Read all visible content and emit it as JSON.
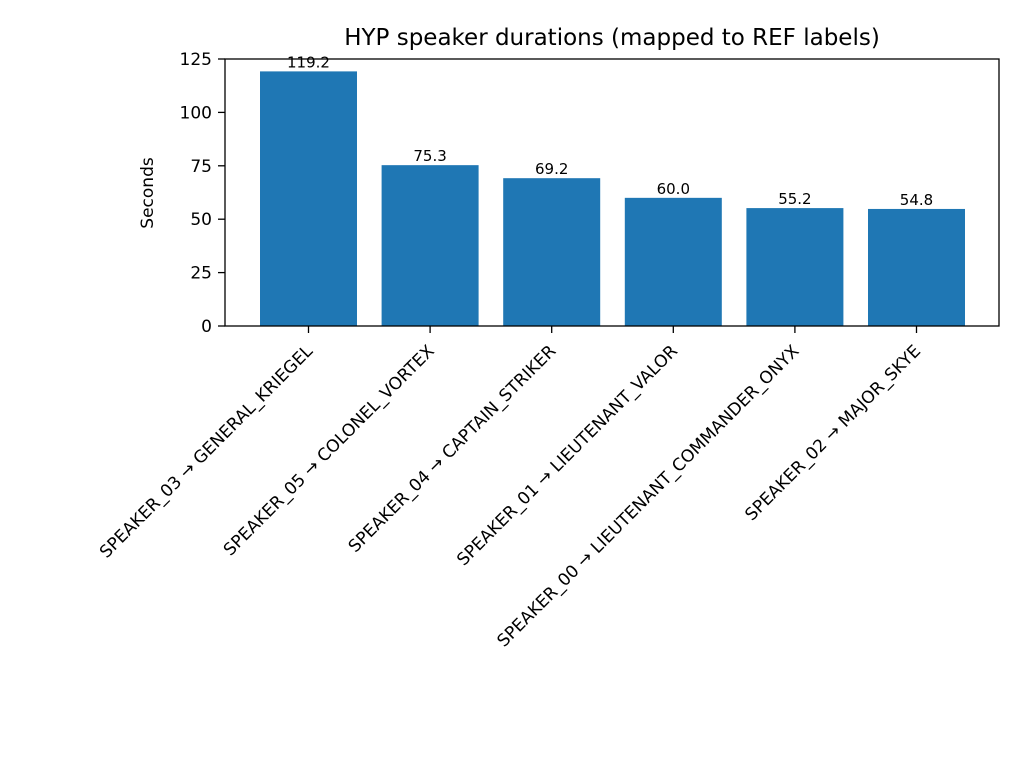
{
  "chart_data": {
    "type": "bar",
    "title": "HYP speaker durations (mapped to REF labels)",
    "xlabel": "",
    "ylabel": "Seconds",
    "categories": [
      "SPEAKER_03 → GENERAL_KRIEGEL",
      "SPEAKER_05 → COLONEL_VORTEX",
      "SPEAKER_04 → CAPTAIN_STRIKER",
      "SPEAKER_01 → LIEUTENANT_VALOR",
      "SPEAKER_00 → LIEUTENANT_COMMANDER_ONYX",
      "SPEAKER_02 → MAJOR_SKYE"
    ],
    "values": [
      119.2,
      75.3,
      69.2,
      60.0,
      55.2,
      54.8
    ],
    "value_labels": [
      "119.2",
      "75.3",
      "69.2",
      "60.0",
      "55.2",
      "54.8"
    ],
    "ylim": [
      0,
      125
    ],
    "yticks": [
      0,
      25,
      50,
      75,
      100,
      125
    ],
    "grid": false,
    "x_tick_rotation_deg": 45,
    "bar_color": "#1f77b4"
  }
}
